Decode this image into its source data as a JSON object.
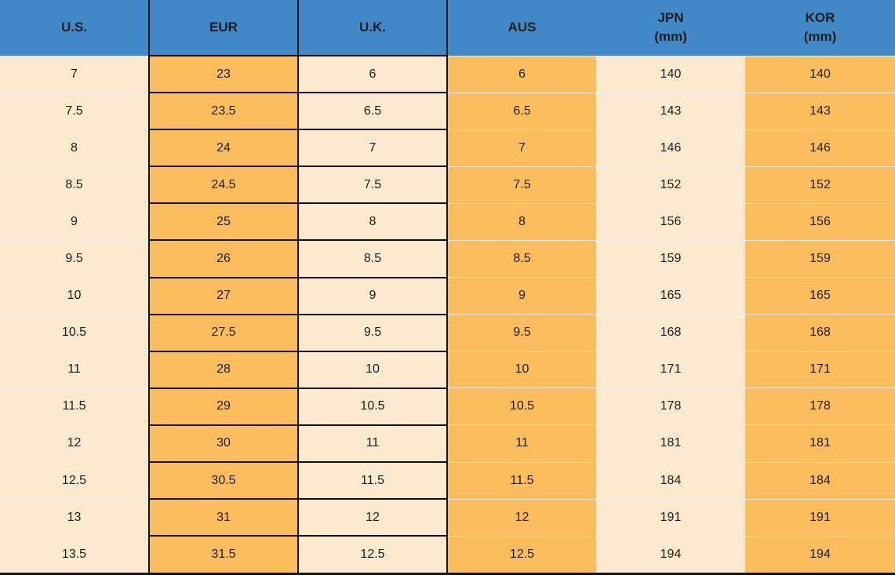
{
  "chart_data": {
    "type": "table",
    "columns": [
      {
        "label": "U.S.",
        "sublabel": ""
      },
      {
        "label": "EUR",
        "sublabel": ""
      },
      {
        "label": "U.K.",
        "sublabel": ""
      },
      {
        "label": "AUS",
        "sublabel": ""
      },
      {
        "label": "JPN",
        "sublabel": "(mm)"
      },
      {
        "label": "KOR",
        "sublabel": "(mm)"
      }
    ],
    "rows": [
      [
        "7",
        "23",
        "6",
        "6",
        "140",
        "140"
      ],
      [
        "7.5",
        "23.5",
        "6.5",
        "6.5",
        "143",
        "143"
      ],
      [
        "8",
        "24",
        "7",
        "7",
        "146",
        "146"
      ],
      [
        "8.5",
        "24.5",
        "7.5",
        "7.5",
        "152",
        "152"
      ],
      [
        "9",
        "25",
        "8",
        "8",
        "156",
        "156"
      ],
      [
        "9.5",
        "26",
        "8.5",
        "8.5",
        "159",
        "159"
      ],
      [
        "10",
        "27",
        "9",
        "9",
        "165",
        "165"
      ],
      [
        "10.5",
        "27.5",
        "9.5",
        "9.5",
        "168",
        "168"
      ],
      [
        "11",
        "28",
        "10",
        "10",
        "171",
        "171"
      ],
      [
        "11.5",
        "29",
        "10.5",
        "10.5",
        "178",
        "178"
      ],
      [
        "12",
        "30",
        "11",
        "11",
        "181",
        "181"
      ],
      [
        "12.5",
        "30.5",
        "11.5",
        "11.5",
        "184",
        "184"
      ],
      [
        "13",
        "31",
        "12",
        "12",
        "191",
        "191"
      ],
      [
        "13.5",
        "31.5",
        "12.5",
        "12.5",
        "194",
        "194"
      ]
    ],
    "column_fill_pattern": [
      "cream",
      "orange",
      "cream",
      "orange",
      "cream",
      "orange"
    ]
  },
  "colors": {
    "header_bg": "#4189C6",
    "row_cream": "#FCE9CE",
    "row_orange": "#FCBE5C",
    "grid_dark": "#111111",
    "grid_light": "#ECECEC",
    "text": "#1C1C1C"
  }
}
